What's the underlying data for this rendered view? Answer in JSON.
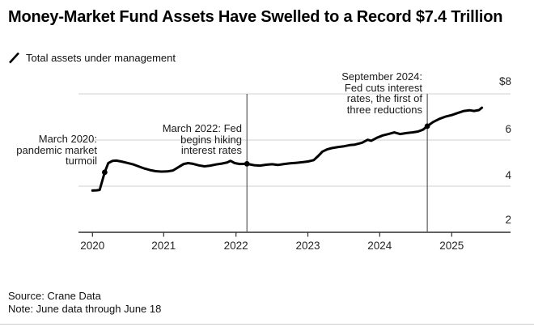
{
  "header": {
    "title": "Money-Market Fund Assets Have Swelled to a Record $7.4 Trillion",
    "legend": {
      "icon": "line-series-slash-icon",
      "label": "Total assets under management",
      "color": "#000000"
    }
  },
  "chart_data": {
    "type": "line",
    "title": "Money-Market Fund Assets Have Swelled to a Record $7.4 Trillion",
    "series_name": "Total assets under management",
    "unit": "USD trillions",
    "grid": "horizontal",
    "legend_position": "top-left",
    "x_axis": {
      "ticks": [
        2020,
        2021,
        2022,
        2023,
        2024,
        2025
      ],
      "labels": [
        "2020",
        "2021",
        "2022",
        "2023",
        "2024",
        "2025"
      ],
      "range": [
        2019.8,
        2025.83
      ]
    },
    "y_axis": {
      "side": "right",
      "ticks": [
        2,
        4,
        6,
        8
      ],
      "labels": [
        "2",
        "4",
        "6",
        "$8"
      ],
      "range": [
        2,
        8
      ]
    },
    "series": [
      {
        "name": "Total assets under management",
        "color": "#000000",
        "points": [
          [
            2020.0,
            3.81
          ],
          [
            2020.06,
            3.82
          ],
          [
            2020.1,
            3.84
          ],
          [
            2020.17,
            4.6
          ],
          [
            2020.22,
            5.0
          ],
          [
            2020.28,
            5.1
          ],
          [
            2020.33,
            5.11
          ],
          [
            2020.4,
            5.07
          ],
          [
            2020.48,
            5.01
          ],
          [
            2020.56,
            4.95
          ],
          [
            2020.64,
            4.86
          ],
          [
            2020.72,
            4.77
          ],
          [
            2020.8,
            4.7
          ],
          [
            2020.88,
            4.65
          ],
          [
            2020.96,
            4.63
          ],
          [
            2021.04,
            4.64
          ],
          [
            2021.12,
            4.68
          ],
          [
            2021.2,
            4.83
          ],
          [
            2021.27,
            4.96
          ],
          [
            2021.33,
            5.0
          ],
          [
            2021.4,
            4.97
          ],
          [
            2021.48,
            4.9
          ],
          [
            2021.56,
            4.86
          ],
          [
            2021.64,
            4.89
          ],
          [
            2021.72,
            4.94
          ],
          [
            2021.8,
            4.98
          ],
          [
            2021.88,
            5.03
          ],
          [
            2021.92,
            5.1
          ],
          [
            2021.98,
            5.0
          ],
          [
            2022.05,
            4.96
          ],
          [
            2022.15,
            4.97
          ],
          [
            2022.25,
            4.91
          ],
          [
            2022.33,
            4.89
          ],
          [
            2022.42,
            4.93
          ],
          [
            2022.5,
            4.95
          ],
          [
            2022.58,
            4.92
          ],
          [
            2022.67,
            4.96
          ],
          [
            2022.75,
            4.99
          ],
          [
            2022.83,
            5.01
          ],
          [
            2022.92,
            5.04
          ],
          [
            2023.0,
            5.07
          ],
          [
            2023.08,
            5.13
          ],
          [
            2023.14,
            5.3
          ],
          [
            2023.2,
            5.5
          ],
          [
            2023.27,
            5.6
          ],
          [
            2023.33,
            5.65
          ],
          [
            2023.42,
            5.7
          ],
          [
            2023.5,
            5.73
          ],
          [
            2023.58,
            5.78
          ],
          [
            2023.65,
            5.8
          ],
          [
            2023.75,
            5.88
          ],
          [
            2023.83,
            6.01
          ],
          [
            2023.88,
            5.97
          ],
          [
            2023.96,
            6.1
          ],
          [
            2024.04,
            6.2
          ],
          [
            2024.12,
            6.26
          ],
          [
            2024.2,
            6.33
          ],
          [
            2024.28,
            6.26
          ],
          [
            2024.37,
            6.3
          ],
          [
            2024.45,
            6.33
          ],
          [
            2024.53,
            6.37
          ],
          [
            2024.6,
            6.45
          ],
          [
            2024.66,
            6.6
          ],
          [
            2024.74,
            6.78
          ],
          [
            2024.83,
            6.92
          ],
          [
            2024.92,
            7.02
          ],
          [
            2025.0,
            7.08
          ],
          [
            2025.08,
            7.17
          ],
          [
            2025.17,
            7.26
          ],
          [
            2025.25,
            7.29
          ],
          [
            2025.31,
            7.26
          ],
          [
            2025.38,
            7.3
          ],
          [
            2025.42,
            7.4
          ]
        ]
      }
    ],
    "annotations": [
      {
        "t": 2020.17,
        "v": 4.6,
        "vertical_line": false,
        "text": "March 2020:\npandemic market\nturmoil"
      },
      {
        "t": 2022.15,
        "v": 4.97,
        "vertical_line": true,
        "text": "March 2022: Fed\nbegins hiking\ninterest rates"
      },
      {
        "t": 2024.66,
        "v": 6.6,
        "vertical_line": true,
        "text": "September 2024:\nFed cuts interest\nrates, the first of\nthree reductions"
      }
    ],
    "colors": {
      "series": "#000000",
      "gridline": "#d0d0d0",
      "axis": "#2e2e2e",
      "annotation_line": "#5a5a5a"
    }
  },
  "footer": {
    "source": "Source: Crane Data",
    "note": "Note: June data through June 18"
  }
}
